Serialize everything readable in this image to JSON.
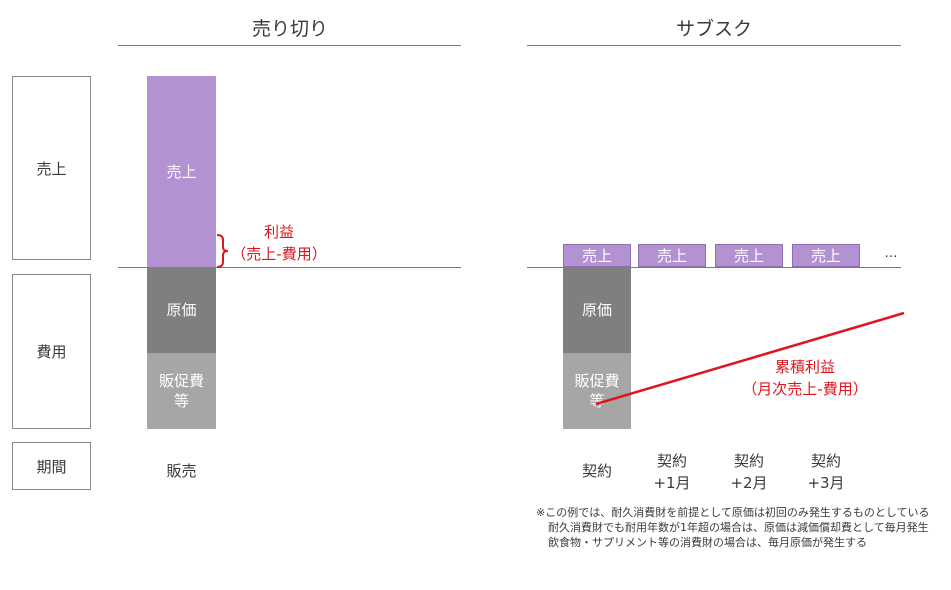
{
  "titles": {
    "left": "売り切り",
    "right": "サブスク"
  },
  "row_labels": {
    "sales": "売上",
    "costs": "費用",
    "period": "期間"
  },
  "left": {
    "sales_block": "売上",
    "cost_block": "原価",
    "sga_block_line1": "販促費",
    "sga_block_line2": "等",
    "profit_line1": "利益",
    "profit_line2": "（売上-費用）",
    "period_label": "販売"
  },
  "right": {
    "monthly_sales": [
      "売上",
      "売上",
      "売上",
      "売上"
    ],
    "ellipsis": "…",
    "cost_block": "原価",
    "sga_block_line1": "販促費",
    "sga_block_line2": "等",
    "cumulative_line1": "累積利益",
    "cumulative_line2": "（月次売上-費用）",
    "periods": [
      {
        "line1": "契約",
        "line2": ""
      },
      {
        "line1": "契約",
        "line2": "+1月"
      },
      {
        "line1": "契約",
        "line2": "+2月"
      },
      {
        "line1": "契約",
        "line2": "+3月"
      }
    ]
  },
  "notes": [
    "※この例では、耐久消費財を前提として原価は初回のみ発生するものとしている",
    "耐久消費財でも耐用年数が1年超の場合は、原価は減価償却費として毎月発生",
    "飲食物・サプリメント等の消費財の場合は、毎月原価が発生する"
  ],
  "colors": {
    "sales": "#b392d2",
    "cost": "#7f7f7f",
    "sga": "#a6a6a6",
    "profit": "#e0141e"
  }
}
